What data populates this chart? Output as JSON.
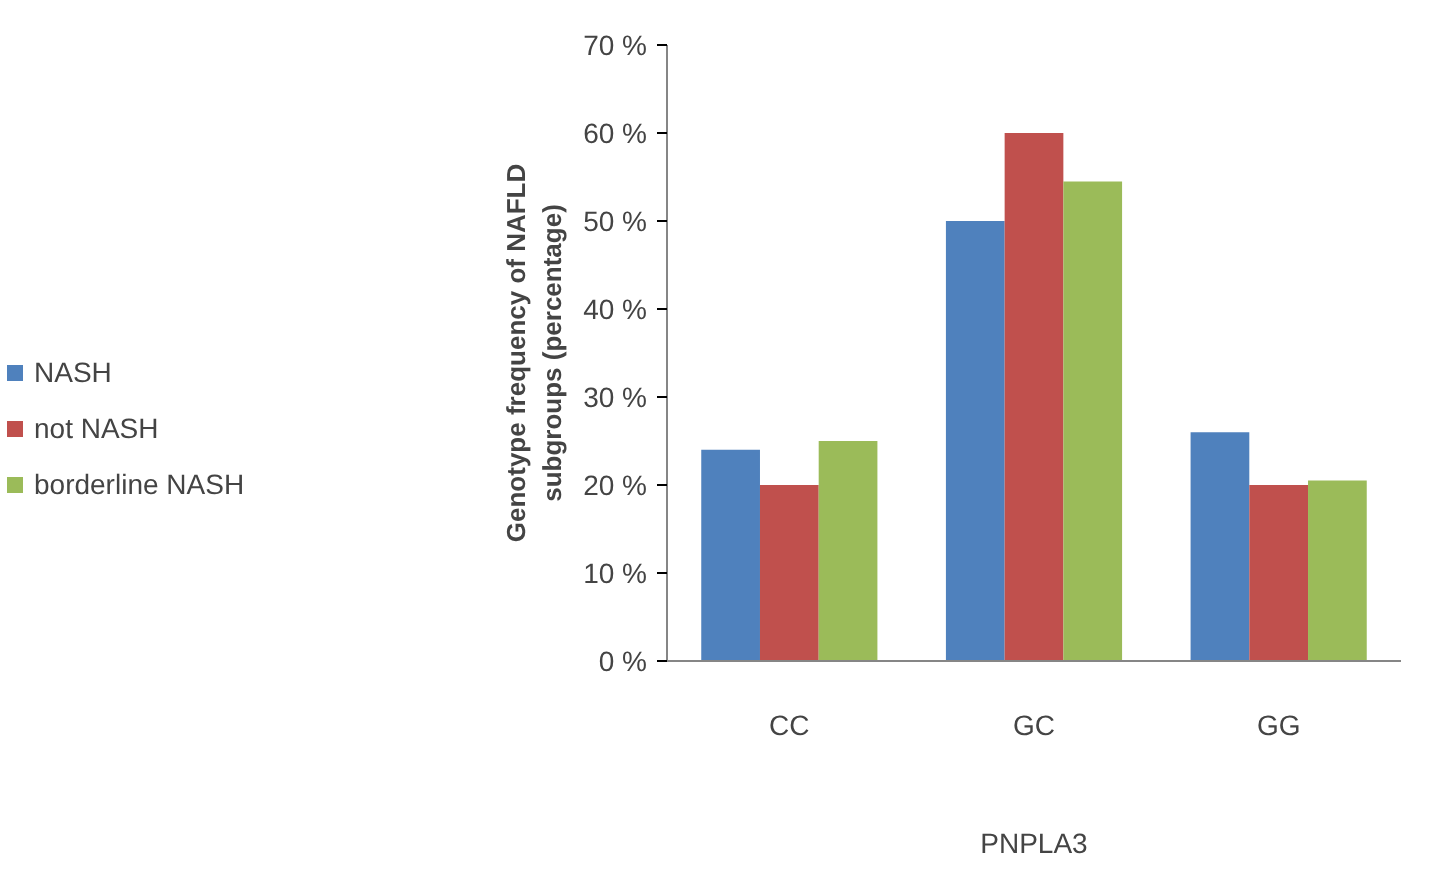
{
  "chart_data": {
    "type": "bar",
    "categories": [
      "CC",
      "GC",
      "GG"
    ],
    "xlabel": "PNPLA3",
    "ylabel": "Genotype frequency of NAFLD subgroups (percentage)",
    "series": [
      {
        "name": "NASH",
        "color": "#4f81bd",
        "values": [
          24,
          50,
          26
        ]
      },
      {
        "name": "not NASH",
        "color": "#c0504d",
        "values": [
          20,
          60,
          20
        ]
      },
      {
        "name": "borderline NASH",
        "color": "#9bbb59",
        "values": [
          25,
          54.5,
          20.5
        ]
      }
    ],
    "ylim": [
      0,
      70
    ],
    "yticks": [
      {
        "value": 0,
        "label": "0 %"
      },
      {
        "value": 10,
        "label": "10 %"
      },
      {
        "value": 20,
        "label": "20 %"
      },
      {
        "value": 30,
        "label": "30 %"
      },
      {
        "value": 40,
        "label": "40 %"
      },
      {
        "value": 50,
        "label": "50 %"
      },
      {
        "value": 60,
        "label": "60 %"
      },
      {
        "value": 70,
        "label": "70 %"
      }
    ],
    "grid": false,
    "legend": "left"
  }
}
